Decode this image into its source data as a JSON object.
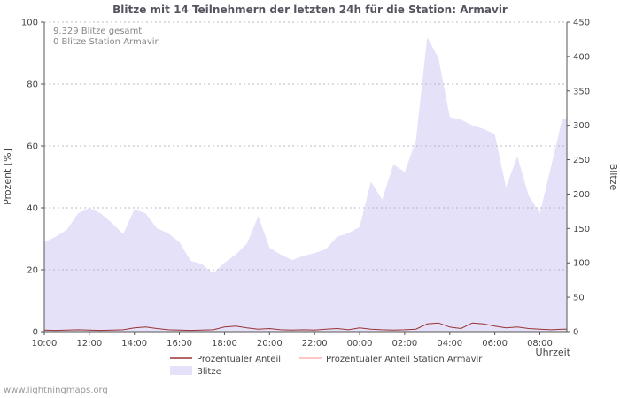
{
  "watermark": "www.lightningmaps.org",
  "chart_data": {
    "type": "area",
    "title": "Blitze mit 14 Teilnehmern der letzten 24h für die Station: Armavir",
    "annotations": [
      "9.329 Blitze gesamt",
      "0 Blitze Station Armavir"
    ],
    "xlabel": "Uhrzeit",
    "ylabel_left": "Prozent  [%]",
    "ylabel_right": "Blitze",
    "ylim_left": [
      0,
      100
    ],
    "ylim_right": [
      0,
      450
    ],
    "left_ticks": [
      0,
      20,
      40,
      60,
      80,
      100
    ],
    "right_ticks": [
      0,
      50,
      100,
      150,
      200,
      250,
      300,
      350,
      400,
      450
    ],
    "x_ticks": [
      "10:00",
      "12:00",
      "14:00",
      "16:00",
      "18:00",
      "20:00",
      "22:00",
      "00:00",
      "02:00",
      "04:00",
      "06:00",
      "08:00"
    ],
    "x_tick_hours": [
      0,
      2,
      4,
      6,
      8,
      10,
      12,
      14,
      16,
      18,
      20,
      22
    ],
    "x_range_hours": [
      0,
      23.2
    ],
    "grid": "horizontal-dotted",
    "legend_position": "bottom",
    "series": [
      {
        "name": "Blitze",
        "type": "area",
        "axis": "right",
        "color": "#e4e1f8",
        "x": [
          0,
          0.5,
          1,
          1.5,
          2,
          2.5,
          3,
          3.5,
          4,
          4.5,
          5,
          5.5,
          6,
          6.5,
          7,
          7.5,
          8,
          8.5,
          9,
          9.5,
          10,
          10.5,
          11,
          11.5,
          12,
          12.5,
          13,
          13.5,
          14,
          14.5,
          15,
          15.5,
          16,
          16.5,
          17,
          17.5,
          18,
          18.5,
          19,
          19.5,
          20,
          20.5,
          21,
          21.5,
          22,
          22.5,
          23,
          23.2
        ],
        "values": [
          130,
          138,
          148,
          172,
          180,
          172,
          158,
          142,
          178,
          172,
          150,
          143,
          130,
          103,
          98,
          85,
          100,
          112,
          128,
          168,
          122,
          112,
          104,
          110,
          114,
          120,
          138,
          143,
          152,
          218,
          192,
          243,
          232,
          278,
          428,
          398,
          312,
          308,
          300,
          295,
          287,
          210,
          255,
          198,
          172,
          240,
          310,
          310
        ]
      },
      {
        "name": "Prozentualer Anteil",
        "type": "line",
        "axis": "left",
        "color": "#993333",
        "x": [
          0,
          0.5,
          1,
          1.5,
          2,
          2.5,
          3,
          3.5,
          4,
          4.5,
          5,
          5.5,
          6,
          6.5,
          7,
          7.5,
          8,
          8.5,
          9,
          9.5,
          10,
          10.5,
          11,
          11.5,
          12,
          12.5,
          13,
          13.5,
          14,
          14.5,
          15,
          15.5,
          16,
          16.5,
          17,
          17.5,
          18,
          18.5,
          19,
          19.5,
          20,
          20.5,
          21,
          21.5,
          22,
          22.5,
          23,
          23.2
        ],
        "values": [
          0.5,
          0.4,
          0.5,
          0.6,
          0.5,
          0.4,
          0.5,
          0.6,
          1.2,
          1.5,
          1.0,
          0.6,
          0.5,
          0.4,
          0.5,
          0.6,
          1.5,
          1.8,
          1.2,
          0.8,
          1.0,
          0.6,
          0.5,
          0.6,
          0.5,
          0.8,
          1.0,
          0.6,
          1.2,
          0.8,
          0.6,
          0.5,
          0.6,
          0.8,
          2.5,
          2.8,
          1.5,
          1.0,
          2.8,
          2.5,
          1.8,
          1.2,
          1.5,
          1.0,
          0.8,
          0.6,
          0.8,
          0.8
        ]
      },
      {
        "name": "Prozentualer Anteil Station Armavir",
        "type": "line",
        "axis": "left",
        "color": "#ffb3b3",
        "x": [
          0,
          0.5,
          1,
          1.5,
          2,
          2.5,
          3,
          3.5,
          4,
          4.5,
          5,
          5.5,
          6,
          6.5,
          7,
          7.5,
          8,
          8.5,
          9,
          9.5,
          10,
          10.5,
          11,
          11.5,
          12,
          12.5,
          13,
          13.5,
          14,
          14.5,
          15,
          15.5,
          16,
          16.5,
          17,
          17.5,
          18,
          18.5,
          19,
          19.5,
          20,
          20.5,
          21,
          21.5,
          22,
          22.5,
          23,
          23.2
        ],
        "values": [
          0,
          0,
          0,
          0,
          0,
          0,
          0,
          0,
          0,
          0,
          0,
          0,
          0,
          0,
          0,
          0,
          0,
          0,
          0,
          0,
          0,
          0,
          0,
          0,
          0,
          0,
          0,
          0,
          0,
          0,
          0,
          0,
          0,
          0,
          0,
          0,
          0,
          0,
          0,
          0,
          0,
          0,
          0,
          0,
          0,
          0,
          0,
          0
        ]
      }
    ],
    "legend": [
      {
        "label": "Prozentualer Anteil",
        "color": "#993333",
        "swatch": "line"
      },
      {
        "label": "Prozentualer Anteil Station Armavir",
        "color": "#ffb3b3",
        "swatch": "line"
      },
      {
        "label": "Blitze",
        "color": "#e4e1f8",
        "swatch": "box"
      }
    ]
  }
}
